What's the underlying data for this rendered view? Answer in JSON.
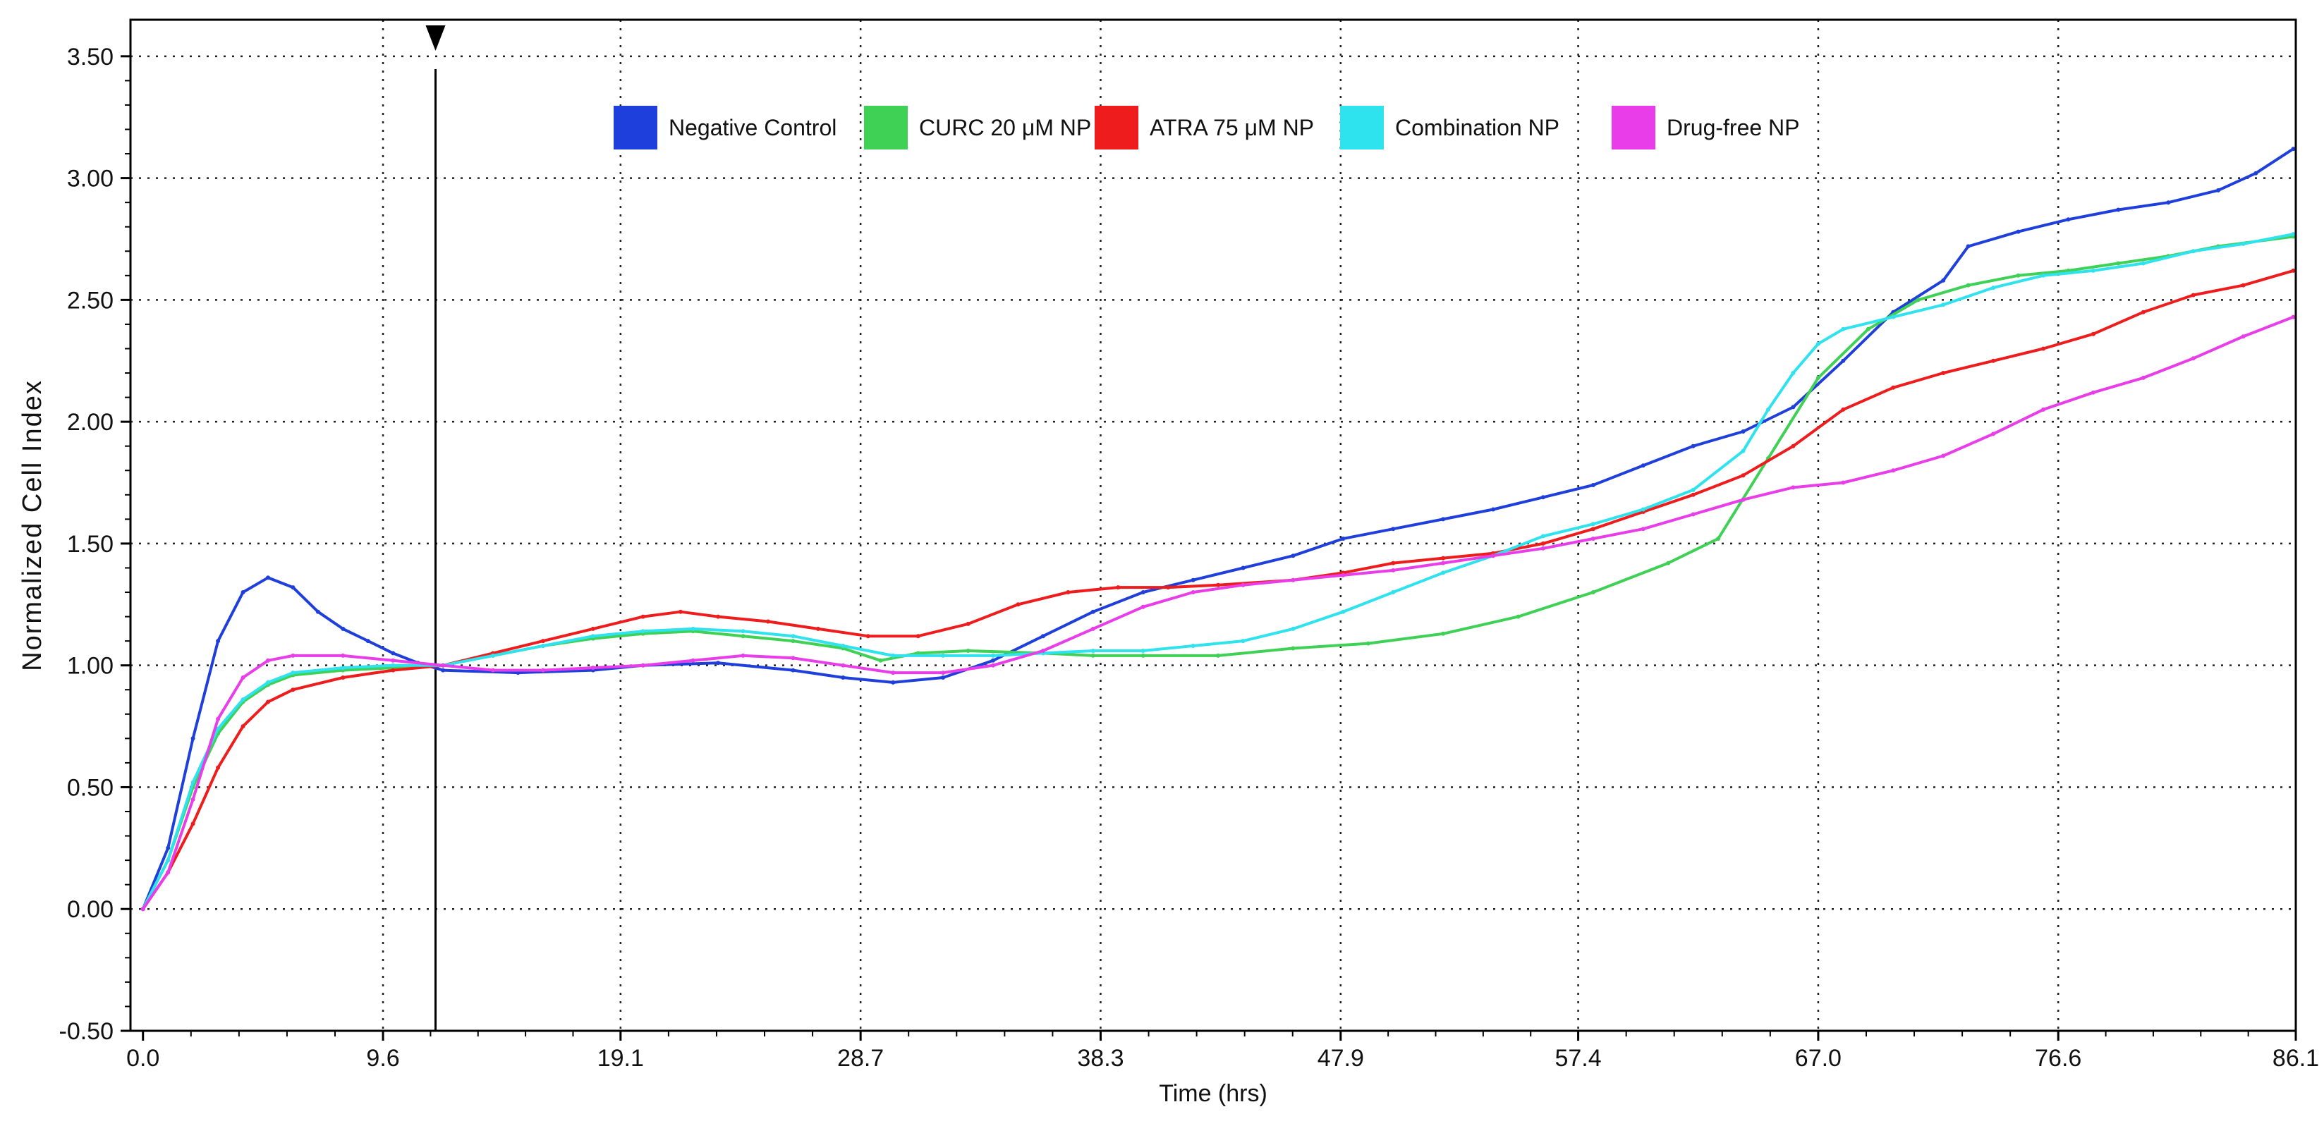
{
  "chart_data": {
    "type": "line",
    "xlabel": "Time (hrs)",
    "ylabel": "Normalized Cell Index",
    "xlim": [
      -0.5,
      86.1
    ],
    "ylim": [
      -0.5,
      3.65
    ],
    "x_ticks": [
      0.0,
      9.6,
      19.1,
      28.7,
      38.3,
      47.9,
      57.4,
      67.0,
      76.6,
      86.1
    ],
    "x_tick_labels": [
      "0.0",
      "9.6",
      "19.1",
      "28.7",
      "38.3",
      "47.9",
      "57.4",
      "67.0",
      "76.6",
      "86.1"
    ],
    "y_ticks": [
      -0.5,
      0.0,
      0.5,
      1.0,
      1.5,
      2.0,
      2.5,
      3.0,
      3.5
    ],
    "y_tick_labels": [
      "-0.50",
      "0.00",
      "0.50",
      "1.00",
      "1.50",
      "2.00",
      "2.50",
      "3.00",
      "3.50"
    ],
    "grid": true,
    "legend_position": "top-center",
    "marker_line_x": 11.7,
    "series": [
      {
        "name": "Negative Control",
        "color": "#1f3fdc",
        "points": [
          [
            0,
            0
          ],
          [
            1,
            0.25
          ],
          [
            2,
            0.7
          ],
          [
            3,
            1.1
          ],
          [
            4,
            1.3
          ],
          [
            5,
            1.36
          ],
          [
            6,
            1.32
          ],
          [
            7,
            1.22
          ],
          [
            8,
            1.15
          ],
          [
            9,
            1.1
          ],
          [
            10,
            1.05
          ],
          [
            11,
            1.01
          ],
          [
            12,
            0.98
          ],
          [
            15,
            0.97
          ],
          [
            18,
            0.98
          ],
          [
            20,
            1.0
          ],
          [
            23,
            1.01
          ],
          [
            26,
            0.98
          ],
          [
            28,
            0.95
          ],
          [
            30,
            0.93
          ],
          [
            32,
            0.95
          ],
          [
            34,
            1.02
          ],
          [
            36,
            1.12
          ],
          [
            38,
            1.22
          ],
          [
            40,
            1.3
          ],
          [
            42,
            1.35
          ],
          [
            44,
            1.4
          ],
          [
            46,
            1.45
          ],
          [
            48,
            1.52
          ],
          [
            50,
            1.56
          ],
          [
            52,
            1.6
          ],
          [
            54,
            1.64
          ],
          [
            56,
            1.69
          ],
          [
            58,
            1.74
          ],
          [
            60,
            1.82
          ],
          [
            62,
            1.9
          ],
          [
            64,
            1.96
          ],
          [
            66,
            2.06
          ],
          [
            68,
            2.25
          ],
          [
            70,
            2.45
          ],
          [
            72,
            2.58
          ],
          [
            73,
            2.72
          ],
          [
            75,
            2.78
          ],
          [
            77,
            2.83
          ],
          [
            79,
            2.87
          ],
          [
            81,
            2.9
          ],
          [
            83,
            2.95
          ],
          [
            84.5,
            3.02
          ],
          [
            86,
            3.12
          ]
        ]
      },
      {
        "name": "CURC 20 μM NP",
        "color": "#3fd156",
        "points": [
          [
            0,
            0
          ],
          [
            1,
            0.2
          ],
          [
            2,
            0.5
          ],
          [
            3,
            0.72
          ],
          [
            4,
            0.85
          ],
          [
            5,
            0.92
          ],
          [
            6,
            0.96
          ],
          [
            8,
            0.98
          ],
          [
            10,
            0.99
          ],
          [
            12,
            1.0
          ],
          [
            14,
            1.04
          ],
          [
            16,
            1.08
          ],
          [
            18,
            1.11
          ],
          [
            20,
            1.13
          ],
          [
            22,
            1.14
          ],
          [
            24,
            1.12
          ],
          [
            26,
            1.1
          ],
          [
            28,
            1.07
          ],
          [
            29.5,
            1.02
          ],
          [
            31,
            1.05
          ],
          [
            33,
            1.06
          ],
          [
            36,
            1.05
          ],
          [
            38,
            1.04
          ],
          [
            40,
            1.04
          ],
          [
            43,
            1.04
          ],
          [
            46,
            1.07
          ],
          [
            49,
            1.09
          ],
          [
            52,
            1.13
          ],
          [
            55,
            1.2
          ],
          [
            58,
            1.3
          ],
          [
            61,
            1.42
          ],
          [
            63,
            1.52
          ],
          [
            65,
            1.85
          ],
          [
            67,
            2.18
          ],
          [
            69,
            2.38
          ],
          [
            71,
            2.5
          ],
          [
            73,
            2.56
          ],
          [
            75,
            2.6
          ],
          [
            77,
            2.62
          ],
          [
            79,
            2.65
          ],
          [
            81,
            2.68
          ],
          [
            83,
            2.72
          ],
          [
            86,
            2.76
          ]
        ]
      },
      {
        "name": "ATRA 75 μM NP",
        "color": "#ee1c1c",
        "points": [
          [
            0,
            0
          ],
          [
            1,
            0.15
          ],
          [
            2,
            0.35
          ],
          [
            3,
            0.58
          ],
          [
            4,
            0.75
          ],
          [
            5,
            0.85
          ],
          [
            6,
            0.9
          ],
          [
            8,
            0.95
          ],
          [
            10,
            0.98
          ],
          [
            12,
            1.0
          ],
          [
            14,
            1.05
          ],
          [
            16,
            1.1
          ],
          [
            18,
            1.15
          ],
          [
            20,
            1.2
          ],
          [
            21.5,
            1.22
          ],
          [
            23,
            1.2
          ],
          [
            25,
            1.18
          ],
          [
            27,
            1.15
          ],
          [
            29,
            1.12
          ],
          [
            31,
            1.12
          ],
          [
            33,
            1.17
          ],
          [
            35,
            1.25
          ],
          [
            37,
            1.3
          ],
          [
            39,
            1.32
          ],
          [
            41,
            1.32
          ],
          [
            43,
            1.33
          ],
          [
            46,
            1.35
          ],
          [
            48,
            1.38
          ],
          [
            50,
            1.42
          ],
          [
            52,
            1.44
          ],
          [
            54,
            1.46
          ],
          [
            56,
            1.5
          ],
          [
            58,
            1.56
          ],
          [
            60,
            1.63
          ],
          [
            62,
            1.7
          ],
          [
            64,
            1.78
          ],
          [
            66,
            1.9
          ],
          [
            68,
            2.05
          ],
          [
            70,
            2.14
          ],
          [
            72,
            2.2
          ],
          [
            74,
            2.25
          ],
          [
            76,
            2.3
          ],
          [
            78,
            2.36
          ],
          [
            80,
            2.45
          ],
          [
            82,
            2.52
          ],
          [
            84,
            2.56
          ],
          [
            86,
            2.62
          ]
        ]
      },
      {
        "name": "Combination NP",
        "color": "#2ee2ee",
        "points": [
          [
            0,
            0
          ],
          [
            1,
            0.2
          ],
          [
            2,
            0.52
          ],
          [
            3,
            0.74
          ],
          [
            4,
            0.86
          ],
          [
            5,
            0.93
          ],
          [
            6,
            0.97
          ],
          [
            8,
            0.99
          ],
          [
            10,
            1.0
          ],
          [
            12,
            1.0
          ],
          [
            14,
            1.04
          ],
          [
            16,
            1.08
          ],
          [
            18,
            1.12
          ],
          [
            20,
            1.14
          ],
          [
            22,
            1.15
          ],
          [
            24,
            1.14
          ],
          [
            26,
            1.12
          ],
          [
            28,
            1.08
          ],
          [
            30,
            1.04
          ],
          [
            32,
            1.04
          ],
          [
            34,
            1.04
          ],
          [
            36,
            1.05
          ],
          [
            38,
            1.06
          ],
          [
            40,
            1.06
          ],
          [
            42,
            1.08
          ],
          [
            44,
            1.1
          ],
          [
            46,
            1.15
          ],
          [
            48,
            1.22
          ],
          [
            50,
            1.3
          ],
          [
            52,
            1.38
          ],
          [
            54,
            1.45
          ],
          [
            56,
            1.53
          ],
          [
            58,
            1.58
          ],
          [
            60,
            1.64
          ],
          [
            62,
            1.72
          ],
          [
            64,
            1.88
          ],
          [
            65,
            2.05
          ],
          [
            66,
            2.2
          ],
          [
            67,
            2.32
          ],
          [
            68,
            2.38
          ],
          [
            70,
            2.43
          ],
          [
            72,
            2.48
          ],
          [
            74,
            2.55
          ],
          [
            76,
            2.6
          ],
          [
            78,
            2.62
          ],
          [
            80,
            2.65
          ],
          [
            82,
            2.7
          ],
          [
            84,
            2.73
          ],
          [
            86,
            2.77
          ]
        ]
      },
      {
        "name": "Drug-free NP",
        "color": "#e83de8",
        "points": [
          [
            0,
            0
          ],
          [
            1,
            0.15
          ],
          [
            2,
            0.45
          ],
          [
            3,
            0.78
          ],
          [
            4,
            0.95
          ],
          [
            5,
            1.02
          ],
          [
            6,
            1.04
          ],
          [
            8,
            1.04
          ],
          [
            10,
            1.02
          ],
          [
            12,
            1.0
          ],
          [
            14,
            0.98
          ],
          [
            16,
            0.98
          ],
          [
            18,
            0.99
          ],
          [
            20,
            1.0
          ],
          [
            22,
            1.02
          ],
          [
            24,
            1.04
          ],
          [
            26,
            1.03
          ],
          [
            28,
            1.0
          ],
          [
            30,
            0.97
          ],
          [
            32,
            0.97
          ],
          [
            34,
            1.0
          ],
          [
            36,
            1.06
          ],
          [
            38,
            1.15
          ],
          [
            40,
            1.24
          ],
          [
            42,
            1.3
          ],
          [
            44,
            1.33
          ],
          [
            46,
            1.35
          ],
          [
            48,
            1.37
          ],
          [
            50,
            1.39
          ],
          [
            52,
            1.42
          ],
          [
            54,
            1.45
          ],
          [
            56,
            1.48
          ],
          [
            58,
            1.52
          ],
          [
            60,
            1.56
          ],
          [
            62,
            1.62
          ],
          [
            64,
            1.68
          ],
          [
            66,
            1.73
          ],
          [
            68,
            1.75
          ],
          [
            70,
            1.8
          ],
          [
            72,
            1.86
          ],
          [
            74,
            1.95
          ],
          [
            76,
            2.05
          ],
          [
            78,
            2.12
          ],
          [
            80,
            2.18
          ],
          [
            82,
            2.26
          ],
          [
            84,
            2.35
          ],
          [
            86,
            2.43
          ]
        ]
      }
    ]
  }
}
